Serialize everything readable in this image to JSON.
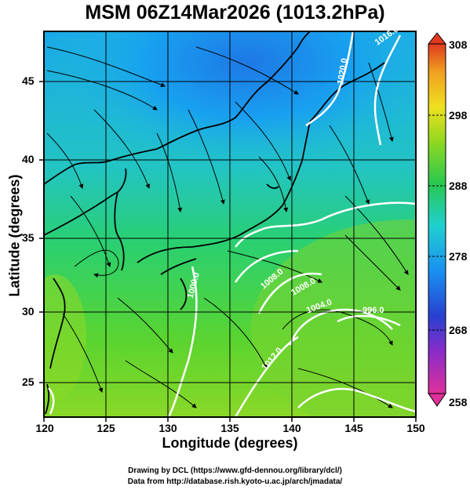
{
  "title": "MSM 06Z14Mar2026 (1013.2hPa)",
  "axes": {
    "xlabel": "Longitude (degrees)",
    "ylabel": "Latitude  (degrees)",
    "xticks": [
      "120",
      "125",
      "130",
      "135",
      "140",
      "145",
      "150"
    ],
    "yticks": [
      "25",
      "30",
      "35",
      "40",
      "45"
    ]
  },
  "colorbar": {
    "ticks": [
      "308",
      "298",
      "288",
      "278",
      "268",
      "258"
    ],
    "colors": [
      "#e0307a",
      "#7a2cc0",
      "#2a3fd0",
      "#1ea0f0",
      "#22d0c0",
      "#28c850",
      "#9ad820",
      "#f0e020",
      "#f0a020",
      "#e04020"
    ]
  },
  "contours": {
    "labels": [
      "1016.0",
      "1020.0",
      "1000.0",
      "1008.0",
      "1008.0",
      "1004.0",
      "996.0",
      "1012.0"
    ]
  },
  "footer": {
    "line1": "Drawing by DCL (https://www.gfd-dennou.org/library/dcl/)",
    "line2": "Data from http://database.rish.kyoto-u.ac.jp/arch/jmadata/"
  }
}
